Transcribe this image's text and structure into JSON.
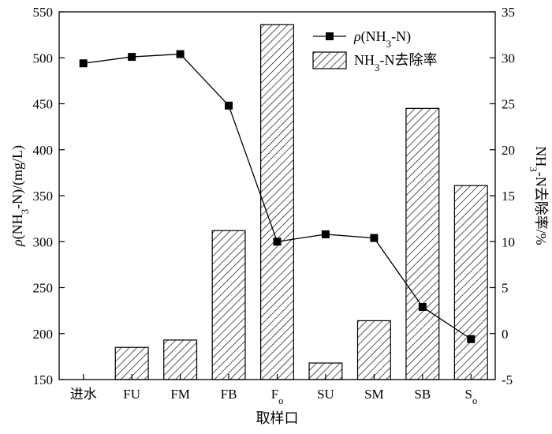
{
  "chart_data": {
    "type": "bar+line",
    "categories": [
      "进水",
      "FU",
      "FM",
      "FB",
      "Fo",
      "SU",
      "SM",
      "SB",
      "So"
    ],
    "category_labels": [
      {
        "main": "进水",
        "sub": ""
      },
      {
        "main": "FU",
        "sub": ""
      },
      {
        "main": "FM",
        "sub": ""
      },
      {
        "main": "FB",
        "sub": ""
      },
      {
        "main": "F",
        "sub": "o"
      },
      {
        "main": "SU",
        "sub": ""
      },
      {
        "main": "SM",
        "sub": ""
      },
      {
        "main": "SB",
        "sub": ""
      },
      {
        "main": "S",
        "sub": "o"
      }
    ],
    "series": [
      {
        "name": "ρ(NH3-N)",
        "type": "line",
        "axis": "left",
        "values": [
          494,
          501,
          504,
          448,
          300,
          308,
          304,
          229,
          194
        ]
      },
      {
        "name": "NH3-N去除率",
        "type": "bar",
        "axis": "right",
        "values": [
          null,
          -1.5,
          -0.7,
          11.2,
          33.6,
          -3.2,
          1.4,
          24.5,
          16.1
        ]
      }
    ],
    "xlabel": "取样口",
    "ylabel_left": "ρ(NH3-N)/(mg/L)",
    "ylabel_right": "NH3-N去除率/%",
    "ylim_left": [
      150,
      550
    ],
    "yticks_left": [
      150,
      200,
      250,
      300,
      350,
      400,
      450,
      500,
      550
    ],
    "ylim_right": [
      -5,
      35
    ],
    "yticks_right": [
      -5,
      0,
      5,
      10,
      15,
      20,
      25,
      30,
      35
    ],
    "legend_position": "top-right",
    "grid": false
  }
}
